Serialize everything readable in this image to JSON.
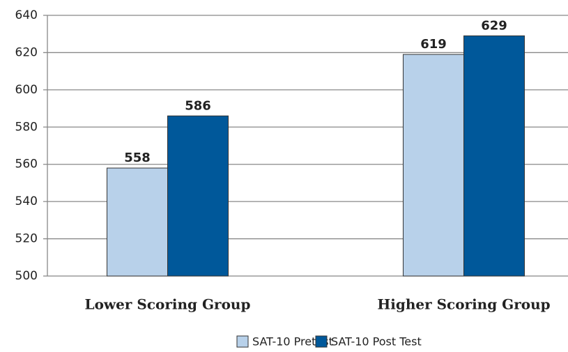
{
  "chart_data": {
    "type": "bar",
    "categories": [
      "Lower Scoring Group",
      "Higher Scoring Group"
    ],
    "series": [
      {
        "name": "SAT-10 Pretest",
        "color": "#b8d1ea",
        "values": [
          558,
          619
        ]
      },
      {
        "name": "SAT-10 Post Test",
        "color": "#00589a",
        "values": [
          586,
          629
        ]
      }
    ],
    "ylim": [
      500,
      640
    ],
    "yticks": [
      500,
      520,
      540,
      560,
      580,
      600,
      620,
      640
    ],
    "grid": true,
    "legend": "bottom"
  }
}
